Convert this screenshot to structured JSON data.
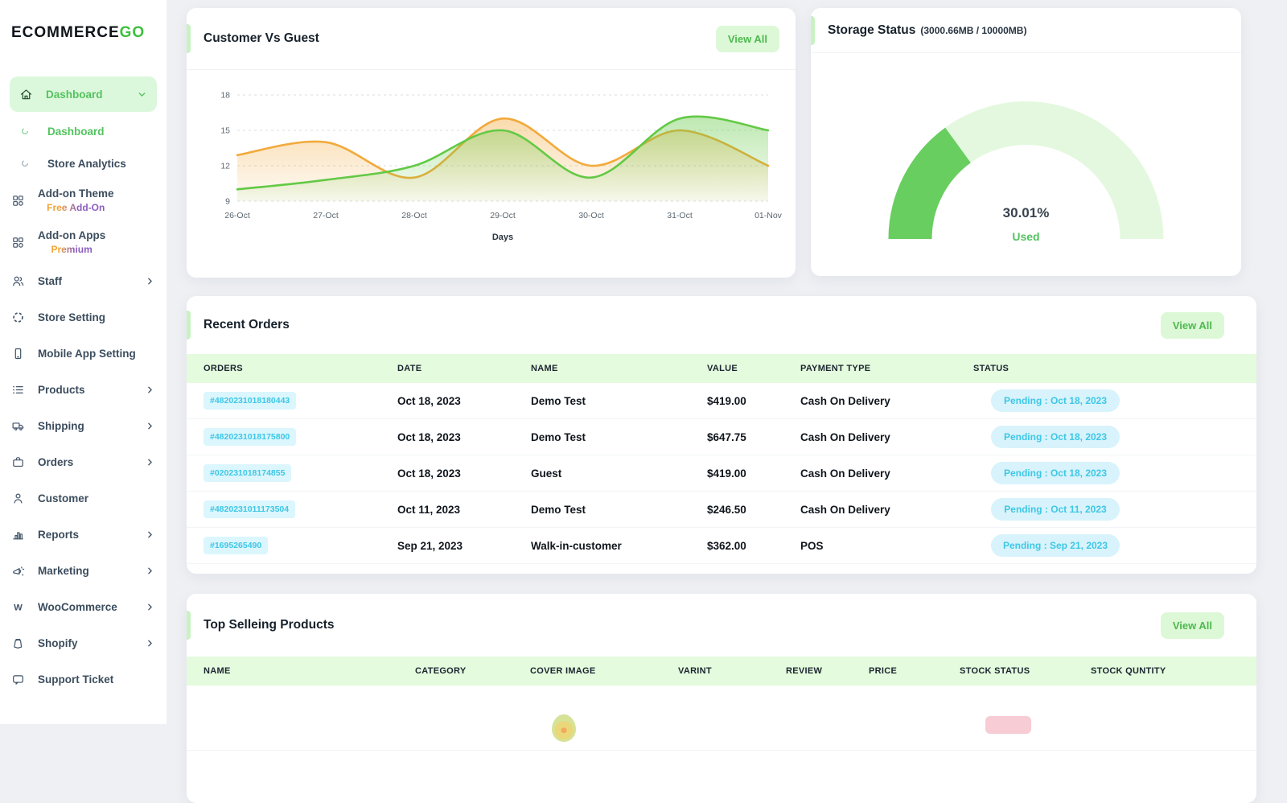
{
  "colors": {
    "accent_green": "#4eb850",
    "accent_green_bg": "#dcf8d6",
    "active_nav_bg": "#dcf8dc",
    "table_header_bg": "#e4fbdd",
    "cyan": "#3ec7e6",
    "cyan_bg": "#dbf6fd",
    "gauge_fill": "#68ce5f",
    "gauge_track": "#e4f8df",
    "badge_pink": "#f7ccd4",
    "series_orange": "#f2a93b",
    "series_green": "#63c945"
  },
  "sidebar": {
    "logo_black": "ECOMMERCE",
    "logo_green": "GO",
    "items": [
      {
        "label": "Dashboard",
        "icon": "home-icon",
        "chevron": "chevron-down-icon",
        "class": "main active"
      },
      {
        "label": "Dashboard",
        "icon": "circle-icon",
        "class": "sub active-sub"
      },
      {
        "label": "Store Analytics",
        "icon": "circle-icon",
        "class": "sub"
      },
      {
        "label": "Add-on Theme",
        "badge": "Free Add-On",
        "icon": "grid-icon",
        "class": "main has-badge"
      },
      {
        "label": "Add-on Apps",
        "badge": "Premium",
        "icon": "grid-icon",
        "class": "main has-badge"
      },
      {
        "label": "Staff",
        "icon": "users-icon",
        "chevron": "chevron-right-icon",
        "class": "main"
      },
      {
        "label": "Store Setting",
        "icon": "loader-icon",
        "class": "main"
      },
      {
        "label": "Mobile App Setting",
        "icon": "mobile-icon",
        "class": "main"
      },
      {
        "label": "Products",
        "icon": "list-icon",
        "chevron": "chevron-right-icon",
        "class": "main"
      },
      {
        "label": "Shipping",
        "icon": "truck-icon",
        "chevron": "chevron-right-icon",
        "class": "main"
      },
      {
        "label": "Orders",
        "icon": "briefcase-icon",
        "chevron": "chevron-right-icon",
        "class": "main"
      },
      {
        "label": "Customer",
        "icon": "person-icon",
        "class": "main"
      },
      {
        "label": "Reports",
        "icon": "bar-chart-icon",
        "chevron": "chevron-right-icon",
        "class": "main"
      },
      {
        "label": "Marketing",
        "icon": "megaphone-icon",
        "chevron": "chevron-right-icon",
        "class": "main"
      },
      {
        "label": "WooCommerce",
        "icon": "woocommerce-icon",
        "chevron": "chevron-right-icon",
        "class": "main"
      },
      {
        "label": "Shopify",
        "icon": "shopify-icon",
        "chevron": "chevron-right-icon",
        "class": "main"
      },
      {
        "label": "Support Ticket",
        "icon": "ticket-icon",
        "class": "main"
      }
    ]
  },
  "chart_data": {
    "type": "area",
    "title": "Customer Vs Guest",
    "x": [
      "26-Oct",
      "27-Oct",
      "28-Oct",
      "29-Oct",
      "30-Oct",
      "31-Oct",
      "01-Nov"
    ],
    "xlabel": "Days",
    "ylim": [
      9,
      18
    ],
    "yticks": [
      9,
      12,
      15,
      18
    ],
    "grid": "dashed-horizontal",
    "legend": "none",
    "series": [
      {
        "name": "Guest",
        "color": "#f2a93b",
        "values": [
          12.9,
          14,
          11,
          16,
          12,
          15,
          12
        ]
      },
      {
        "name": "Customer",
        "color": "#63c945",
        "values": [
          10,
          10.8,
          12,
          15,
          11,
          16,
          15
        ]
      }
    ]
  },
  "cards": {
    "customer_vs_guest": {
      "title": "Customer Vs Guest",
      "view_all": "View All"
    },
    "storage": {
      "title": "Storage Status",
      "subtitle": "(3000.66MB / 10000MB)",
      "percent": 30.01,
      "percent_label": "30.01%",
      "used_label": "Used"
    },
    "recent_orders": {
      "title": "Recent Orders",
      "view_all": "View All",
      "columns": [
        "ORDERS",
        "DATE",
        "NAME",
        "VALUE",
        "PAYMENT TYPE",
        "STATUS"
      ],
      "rows": [
        {
          "id": "#4820231018180443",
          "date": "Oct 18, 2023",
          "name": "Demo Test",
          "value": "$419.00",
          "payment": "Cash On Delivery",
          "status": "Pending : Oct 18, 2023"
        },
        {
          "id": "#4820231018175800",
          "date": "Oct 18, 2023",
          "name": "Demo Test",
          "value": "$647.75",
          "payment": "Cash On Delivery",
          "status": "Pending : Oct 18, 2023"
        },
        {
          "id": "#020231018174855",
          "date": "Oct 18, 2023",
          "name": "Guest",
          "value": "$419.00",
          "payment": "Cash On Delivery",
          "status": "Pending : Oct 18, 2023"
        },
        {
          "id": "#4820231011173504",
          "date": "Oct 11, 2023",
          "name": "Demo Test",
          "value": "$246.50",
          "payment": "Cash On Delivery",
          "status": "Pending : Oct 11, 2023"
        },
        {
          "id": "#1695265490",
          "date": "Sep 21, 2023",
          "name": "Walk-in-customer",
          "value": "$362.00",
          "payment": "POS",
          "status": "Pending : Sep 21, 2023"
        }
      ]
    },
    "top_products": {
      "title": "Top Selleing Products",
      "view_all": "View All",
      "columns": [
        "NAME",
        "CATEGORY",
        "COVER IMAGE",
        "VARINT",
        "REVIEW",
        "PRICE",
        "STOCK STATUS",
        "STOCK QUNTITY"
      ]
    }
  }
}
